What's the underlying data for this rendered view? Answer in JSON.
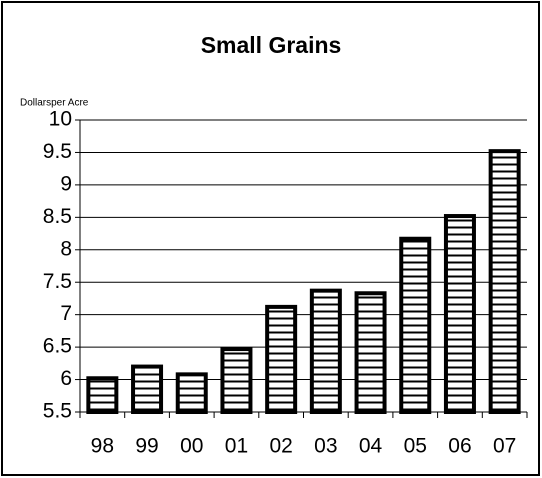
{
  "chart_data": {
    "type": "bar",
    "title": "Small Grains",
    "y_label": "Dollarsper Acre",
    "categories": [
      "98",
      "99",
      "00",
      "01",
      "02",
      "03",
      "04",
      "05",
      "06",
      "07"
    ],
    "values": [
      6.02,
      6.2,
      6.08,
      6.47,
      7.12,
      7.37,
      7.33,
      8.17,
      8.52,
      9.52
    ],
    "color": "#000000",
    "ylim": [
      5.5,
      10
    ],
    "yticks": [
      5.5,
      6,
      6.5,
      7,
      7.5,
      8,
      8.5,
      9,
      9.5,
      10
    ],
    "grid": true
  }
}
